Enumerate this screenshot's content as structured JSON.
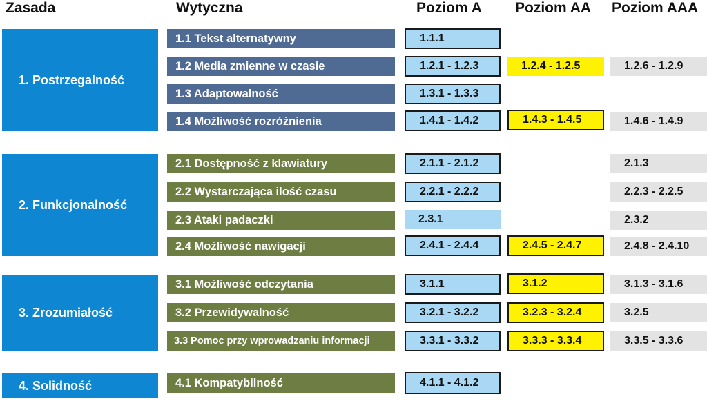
{
  "headers": {
    "principle": "Zasada",
    "guideline": "Wytyczna",
    "level_a": "Poziom A",
    "level_aa": "Poziom AA",
    "level_aaa": "Poziom AAA"
  },
  "colors": {
    "principle_bg": "#0e86d2",
    "guideline_1_bg": "#4f6a93",
    "guideline_2_4_bg": "#6e7d42",
    "level_a_bg": "#a8d8f4",
    "level_aa_bg": "#fff200",
    "level_aaa_bg": "#e3e3e3"
  },
  "principles": [
    {
      "label": "1. Postrzegalność",
      "guidelines": [
        {
          "label": "1.1 Tekst alternatywny",
          "a": "1.1.1",
          "aa": "",
          "aaa": ""
        },
        {
          "label": "1.2 Media zmienne w czasie",
          "a": "1.2.1 - 1.2.3",
          "aa": "1.2.4 - 1.2.5",
          "aaa": "1.2.6 - 1.2.9"
        },
        {
          "label": "1.3 Adaptowalność",
          "a": "1.3.1 - 1.3.3",
          "aa": "",
          "aaa": ""
        },
        {
          "label": "1.4 Możliwość rozróżnienia",
          "a": "1.4.1 - 1.4.2",
          "aa": "1.4.3 - 1.4.5",
          "aaa": "1.4.6 - 1.4.9"
        }
      ]
    },
    {
      "label": "2. Funkcjonalność",
      "guidelines": [
        {
          "label": "2.1 Dostępność z klawiatury",
          "a": "2.1.1 - 2.1.2",
          "aa": "",
          "aaa": "2.1.3"
        },
        {
          "label": "2.2 Wystarczająca ilość czasu",
          "a": "2.2.1 - 2.2.2",
          "aa": "",
          "aaa": "2.2.3 - 2.2.5"
        },
        {
          "label": "2.3 Ataki padaczki",
          "a": "2.3.1",
          "aa": "",
          "aaa": "2.3.2"
        },
        {
          "label": "2.4 Możliwość nawigacji",
          "a": "2.4.1 - 2.4.4",
          "aa": "2.4.5 - 2.4.7",
          "aaa": "2.4.8 - 2.4.10"
        }
      ]
    },
    {
      "label": "3. Zrozumiałość",
      "guidelines": [
        {
          "label": "3.1 Możliwość odczytania",
          "a": "3.1.1",
          "aa": "3.1.2",
          "aaa": "3.1.3 - 3.1.6"
        },
        {
          "label": "3.2 Przewidywalność",
          "a": "3.2.1 - 3.2.2",
          "aa": "3.2.3 - 3.2.4",
          "aaa": "3.2.5"
        },
        {
          "label": "3.3 Pomoc przy wprowadzaniu informacji",
          "a": "3.3.1 - 3.3.2",
          "aa": "3.3.3 - 3.3.4",
          "aaa": "3.3.5 - 3.3.6"
        }
      ]
    },
    {
      "label": "4. Solidność",
      "guidelines": [
        {
          "label": "4.1 Kompatybilność",
          "a": "4.1.1 - 4.1.2",
          "aa": "",
          "aaa": ""
        }
      ]
    }
  ]
}
